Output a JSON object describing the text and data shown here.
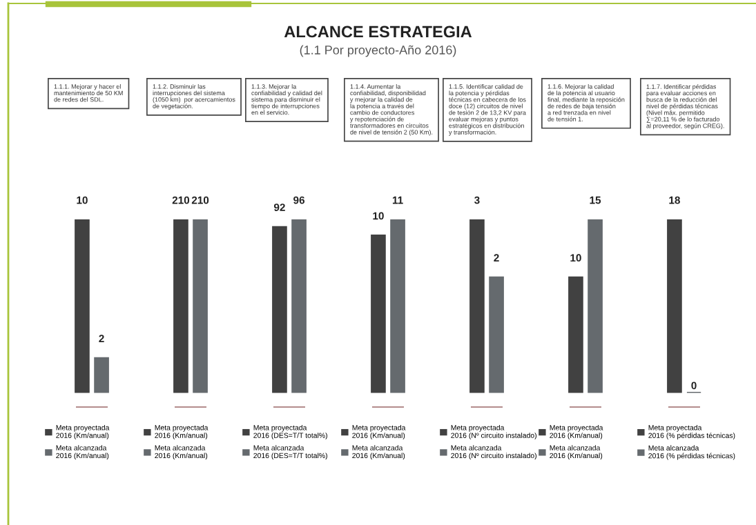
{
  "chart_data": [
    {
      "type": "bar",
      "annotations": [
        "1.1.1. Mejorar y hacer el\nmantenimiento de 50 KM\nde redes del SDL."
      ],
      "categories": [
        null
      ],
      "data_labels": true,
      "legend": "bottom",
      "series": [
        {
          "name": "Meta proyectada\n2016 (Km/anual)",
          "color": "#414141",
          "values": [
            10
          ]
        },
        {
          "name": "Meta alcanzada\n2016 (Km/anual)",
          "color": "#656a6e",
          "values": [
            2
          ]
        }
      ]
    },
    {
      "type": "bar",
      "annotations": [
        "1.1.2. Disminuir las\ninterrupciones del sistema\n(1050 km)  por acercamientos\nde vegetación."
      ],
      "categories": [
        null
      ],
      "data_labels": true,
      "legend": "bottom",
      "series": [
        {
          "name": "Meta proyectada\n2016 (Km/anual)",
          "color": "#414141",
          "values": [
            210
          ]
        },
        {
          "name": "Meta alcanzada\n2016 (Km/anual)",
          "color": "#656a6e",
          "values": [
            210
          ]
        }
      ]
    },
    {
      "type": "bar",
      "annotations": [
        "1.1.3. Mejorar la\nconfiabilidad y calidad del\nsistema para disminuir el\ntiempo de interrupciones\nen el servicio."
      ],
      "categories": [
        null
      ],
      "data_labels": true,
      "legend": "bottom",
      "series": [
        {
          "name": "Meta proyectada\n2016 (DES=T/T total%)",
          "color": "#414141",
          "values": [
            92
          ]
        },
        {
          "name": "Meta alcanzada\n2016 (DES=T/T total%)",
          "color": "#656a6e",
          "values": [
            96
          ]
        }
      ]
    },
    {
      "type": "bar",
      "title": "ALCANCE ESTRATEGIA",
      "subtitle": "(1.1 Por proyecto-Año 2016)",
      "annotations": [
        "1.1.4. Aumentar la\nconfiabilidad, disponibilidad\ny mejorar la calidad de\nla potencia a través del\ncambio de conductores\ny repotenciación de\ntransformadores en circuitos\nde nivel de tensión 2 (50 Km)."
      ],
      "categories": [
        null
      ],
      "data_labels": true,
      "legend": "bottom",
      "series": [
        {
          "name": "Meta proyectada\n2016 (Km/anual)",
          "color": "#414141",
          "values": [
            10
          ]
        },
        {
          "name": "Meta alcanzada\n2016 (Km/anual)",
          "color": "#656a6e",
          "values": [
            11
          ]
        }
      ]
    },
    {
      "type": "bar",
      "annotations": [
        "1.1.5. Identificar calidad de\nla potencia y pérdidas\ntécnicas en cabecera de los\ndoce (12) circuitos de nivel\nde tesión 2 de 13,2 KV para\nevaluar mejoras y puntos\nestratégicos en distribución\ny transformación."
      ],
      "categories": [
        null
      ],
      "data_labels": true,
      "legend": "bottom",
      "series": [
        {
          "name": "Meta proyectada\n2016 (Nº circuito instalado)",
          "color": "#414141",
          "values": [
            3
          ]
        },
        {
          "name": "Meta alcanzada\n2016 (Nº circuito instalado)",
          "color": "#656a6e",
          "values": [
            2
          ]
        }
      ]
    },
    {
      "type": "bar",
      "annotations": [
        "1.1.6. Mejorar la calidad\nde la potencia al usuario\nfinal, mediante la reposición\nde redes de baja tensión\na red trenzada en nivel\nde tensión 1."
      ],
      "categories": [
        null
      ],
      "data_labels": true,
      "legend": "bottom",
      "series": [
        {
          "name": "Meta proyectada\n2016 (Km/anual)",
          "color": "#414141",
          "values": [
            10
          ]
        },
        {
          "name": "Meta alcanzada\n2016 (Km/anual)",
          "color": "#656a6e",
          "values": [
            15
          ]
        }
      ]
    },
    {
      "type": "bar",
      "annotations": [
        "1.1.7. Identificar pérdidas\npara evaluar acciones en\nbusca de la reducción del\nnivel de pérdidas técnicas\n(Nivel máx. permitido\n∑=20,11 % de lo facturado\nal proveedor, según CREG)."
      ],
      "categories": [
        null
      ],
      "data_labels": true,
      "legend": "bottom",
      "series": [
        {
          "name": "Meta proyectada\n2016 (% pérdidas técnicas)",
          "color": "#414141",
          "values": [
            18
          ]
        },
        {
          "name": "Meta alcanzada\n2016 (% pérdidas técnicas)",
          "color": "#656a6e",
          "values": [
            0
          ]
        }
      ]
    }
  ]
}
